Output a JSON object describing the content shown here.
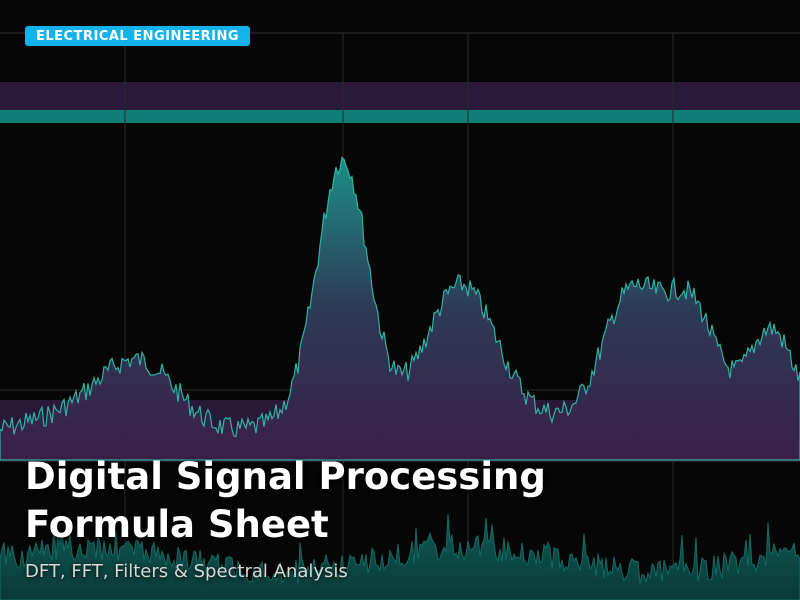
{
  "hero": {
    "category_badge": "ELECTRICAL ENGINEERING",
    "title_line1": "Digital Signal Processing",
    "title_line2": "Formula Sheet",
    "subtitle": "DFT, FFT, Filters & Spectral Analysis"
  },
  "background": {
    "image": "spectrum-analyzer-illustration",
    "colors": {
      "teal": "#1a9a8c",
      "purple": "#3a1f4a",
      "band_teal": "#0f7f78",
      "badge": "#12b3ea"
    }
  }
}
